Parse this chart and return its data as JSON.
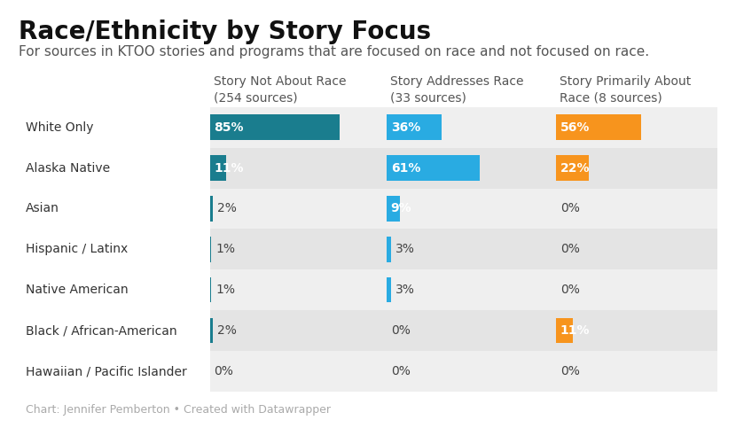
{
  "title": "Race/Ethnicity by Story Focus",
  "subtitle": "For sources in KTOO stories and programs that are focused on race and not focused on race.",
  "footnote": "Chart: Jennifer Pemberton • Created with Datawrapper",
  "categories": [
    "White Only",
    "Alaska Native",
    "Asian",
    "Hispanic / Latinx",
    "Native American",
    "Black / African-American",
    "Hawaiian / Pacific Islander"
  ],
  "columns": [
    {
      "label": "Story Not About Race\n(254 sources)",
      "color": "#1a7d8e",
      "values": [
        85,
        11,
        2,
        1,
        1,
        2,
        0
      ]
    },
    {
      "label": "Story Addresses Race\n(33 sources)",
      "color": "#29abe2",
      "values": [
        36,
        61,
        9,
        3,
        3,
        0,
        0
      ]
    },
    {
      "label": "Story Primarily About\nRace (8 sources)",
      "color": "#f7941d",
      "values": [
        56,
        22,
        0,
        0,
        0,
        11,
        0
      ]
    }
  ],
  "row_bg_even": "#efefef",
  "row_bg_odd": "#e4e4e4",
  "title_fontsize": 20,
  "subtitle_fontsize": 11,
  "col_header_fontsize": 10,
  "row_label_fontsize": 10,
  "value_fontsize": 10,
  "footnote_fontsize": 9
}
